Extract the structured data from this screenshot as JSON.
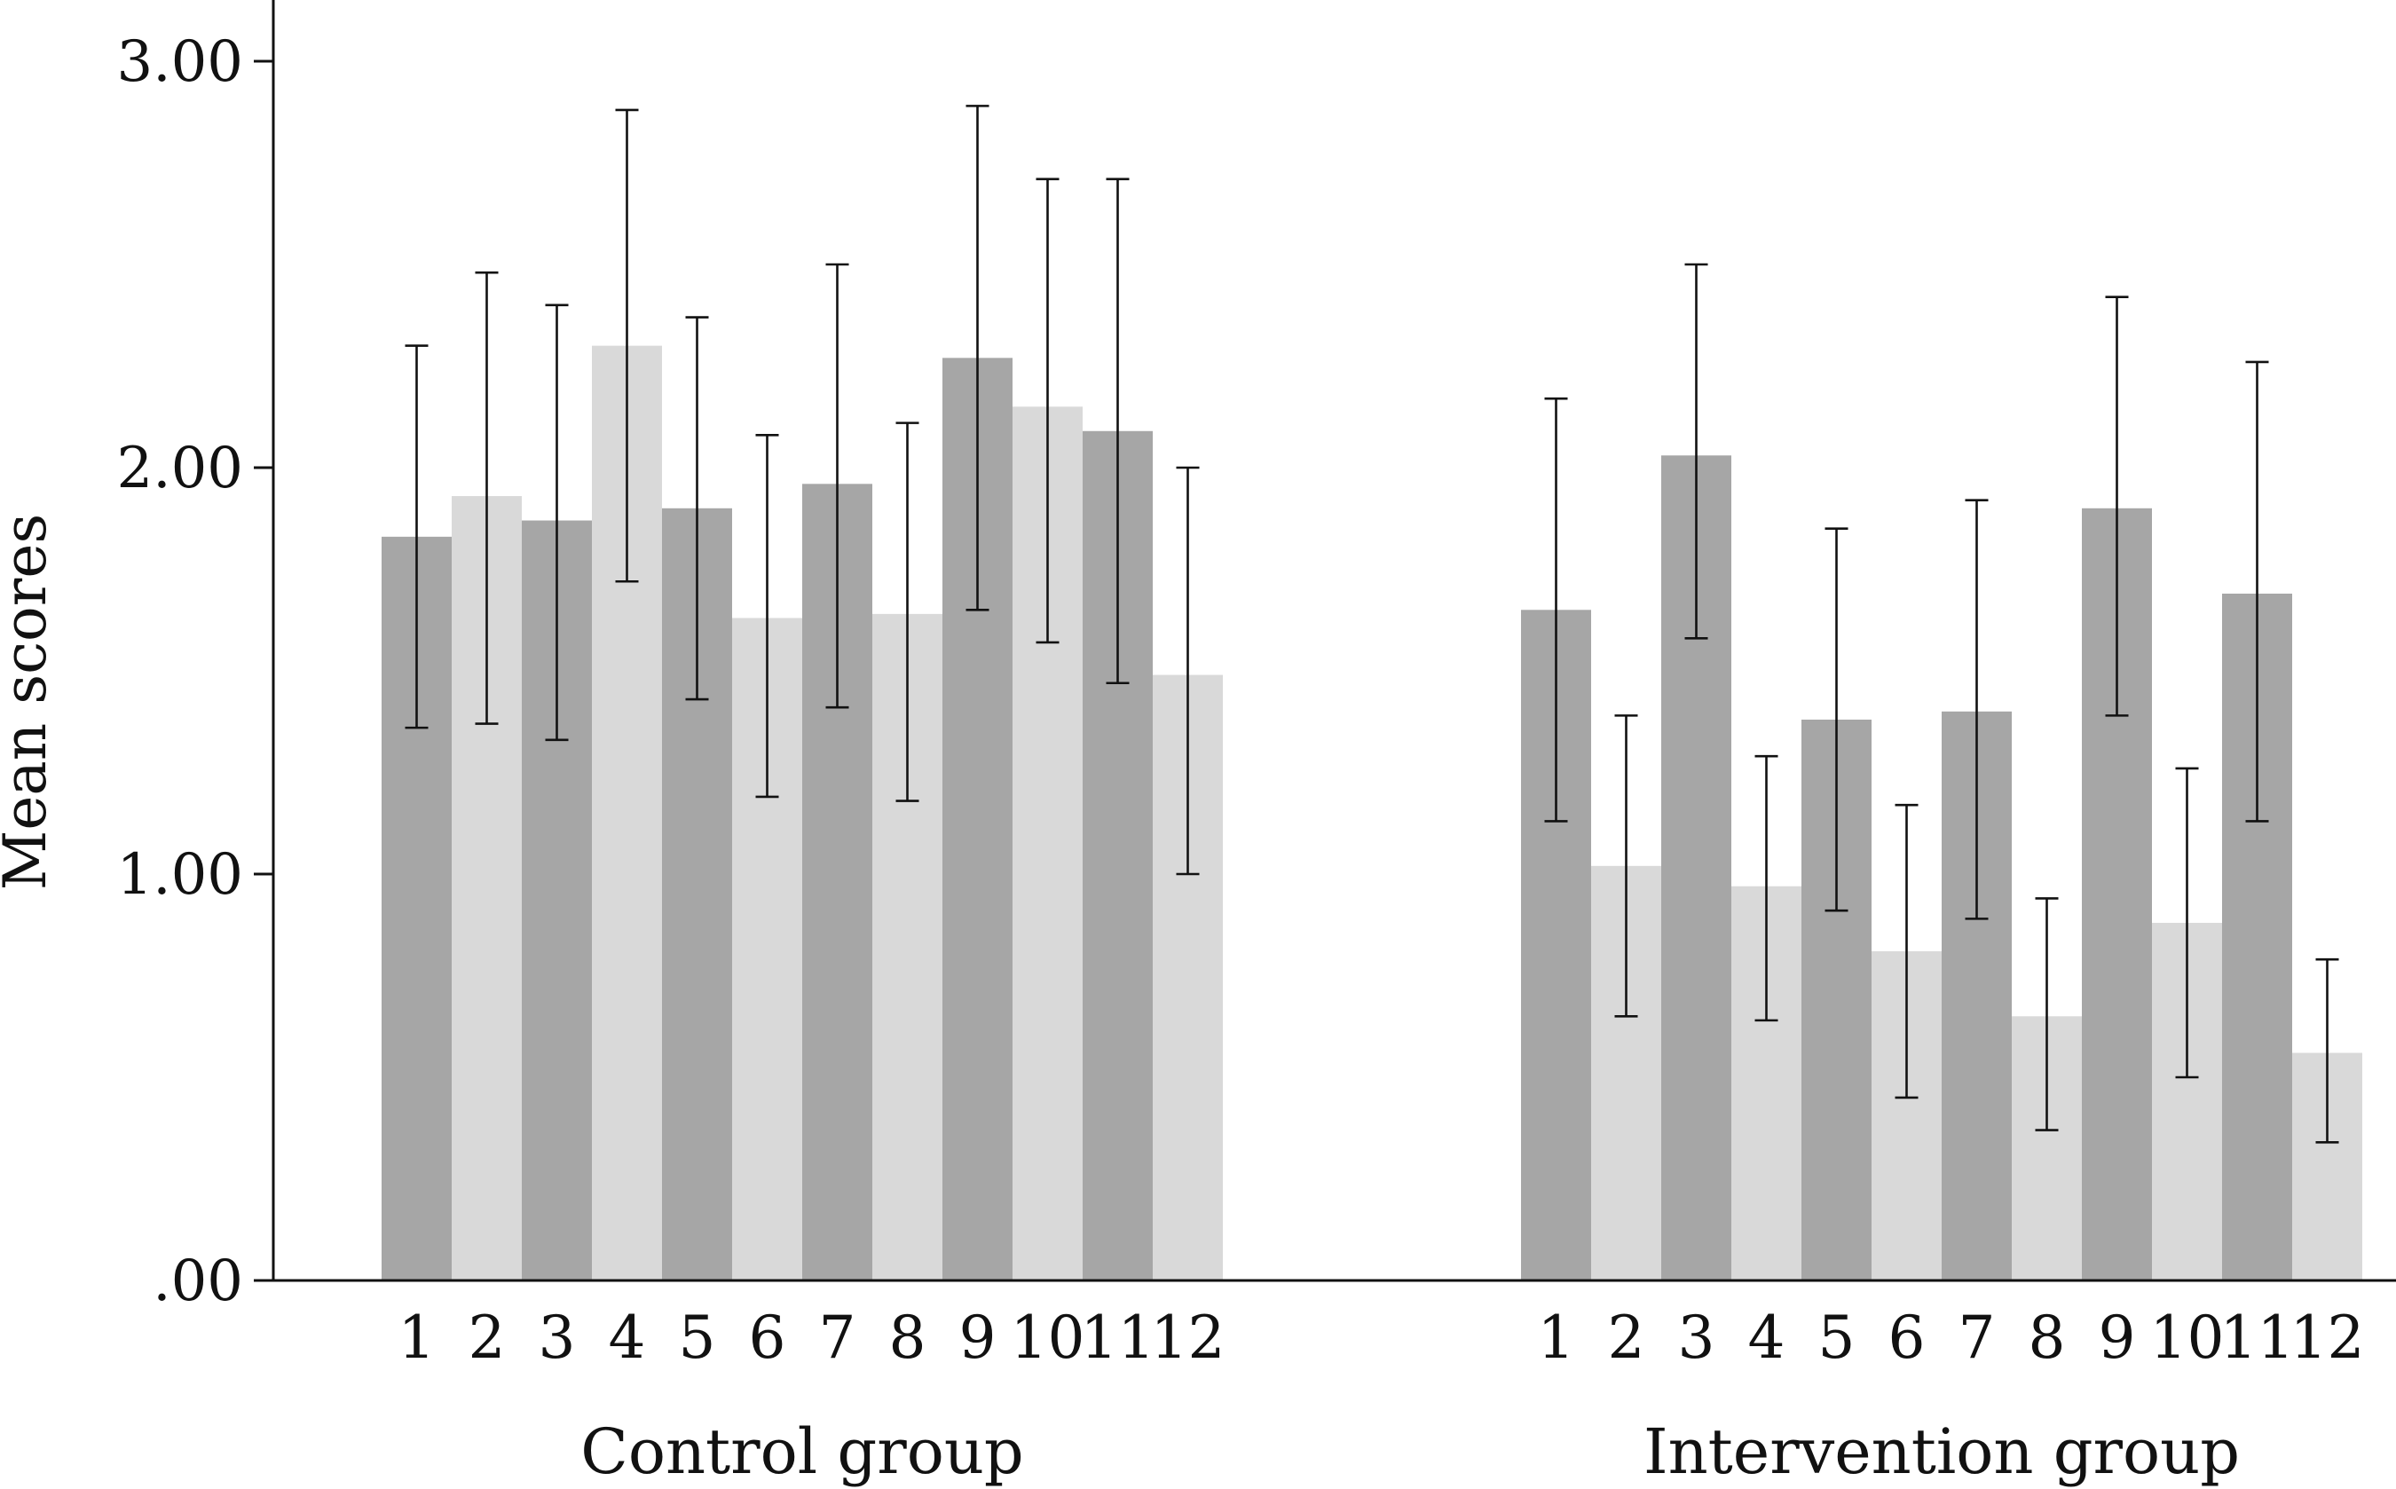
{
  "chart_data": {
    "type": "bar",
    "ylabel": "Mean scores",
    "ylim": [
      0,
      3
    ],
    "yticks": [
      0,
      1,
      2,
      3
    ],
    "ytick_labels": [
      ".00",
      "1.00",
      "2.00",
      "3.00"
    ],
    "grid": false,
    "legend": "none",
    "colors": {
      "dark": "#a6a6a6",
      "light": "#d9d9d9"
    },
    "groups": [
      {
        "name": "Control group",
        "categories": [
          "1",
          "2",
          "3",
          "4",
          "5",
          "6",
          "7",
          "8",
          "9",
          "10",
          "11",
          "12"
        ],
        "shades": [
          "dark",
          "light",
          "dark",
          "light",
          "dark",
          "light",
          "dark",
          "light",
          "dark",
          "light",
          "dark",
          "light"
        ],
        "values": [
          1.83,
          1.93,
          1.87,
          2.3,
          1.9,
          1.63,
          1.96,
          1.64,
          2.27,
          2.15,
          2.09,
          1.49
        ],
        "error_low": [
          1.36,
          1.37,
          1.33,
          1.72,
          1.43,
          1.19,
          1.41,
          1.18,
          1.65,
          1.57,
          1.47,
          1.0
        ],
        "error_high": [
          2.3,
          2.48,
          2.4,
          2.88,
          2.37,
          2.08,
          2.5,
          2.11,
          2.89,
          2.71,
          2.71,
          2.0
        ]
      },
      {
        "name": "Intervention group",
        "categories": [
          "1",
          "2",
          "3",
          "4",
          "5",
          "6",
          "7",
          "8",
          "9",
          "10",
          "11",
          "12"
        ],
        "shades": [
          "dark",
          "light",
          "dark",
          "light",
          "dark",
          "light",
          "dark",
          "light",
          "dark",
          "light",
          "dark",
          "light"
        ],
        "values": [
          1.65,
          1.02,
          2.03,
          0.97,
          1.38,
          0.81,
          1.4,
          0.65,
          1.9,
          0.88,
          1.69,
          0.56
        ],
        "error_low": [
          1.13,
          0.65,
          1.58,
          0.64,
          0.91,
          0.45,
          0.89,
          0.37,
          1.39,
          0.5,
          1.13,
          0.34
        ],
        "error_high": [
          2.17,
          1.39,
          2.5,
          1.29,
          1.85,
          1.17,
          1.92,
          0.94,
          2.42,
          1.26,
          2.26,
          0.79
        ]
      }
    ]
  }
}
